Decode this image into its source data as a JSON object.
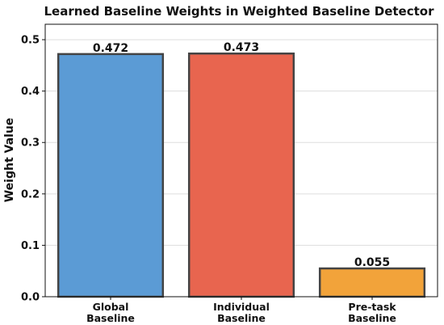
{
  "chart_data": {
    "type": "bar",
    "title": "Learned Baseline Weights in Weighted Baseline Detector",
    "xlabel": "",
    "ylabel": "Weight Value",
    "categories": [
      [
        "Global",
        "Baseline"
      ],
      [
        "Individual",
        "Baseline"
      ],
      [
        "Pre-task",
        "Baseline"
      ]
    ],
    "values": [
      0.472,
      0.473,
      0.055
    ],
    "value_labels": [
      "0.472",
      "0.473",
      "0.055"
    ],
    "colors": [
      "#5b9bd5",
      "#e8654f",
      "#f2a33a"
    ],
    "ylim": [
      0,
      0.53
    ],
    "yticks": [
      0.0,
      0.1,
      0.2,
      0.3,
      0.4,
      0.5
    ],
    "ytick_labels": [
      "0.0",
      "0.1",
      "0.2",
      "0.3",
      "0.4",
      "0.5"
    ],
    "grid": "horizontal"
  }
}
